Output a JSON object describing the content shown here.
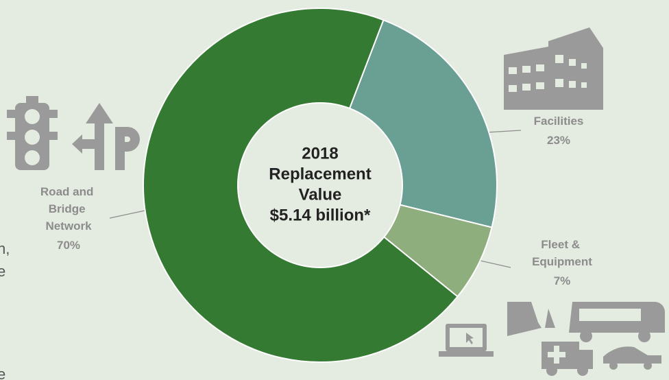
{
  "chart_data": {
    "type": "donut",
    "center_text": [
      "2018",
      "Replacement",
      "Value",
      "$5.14 billion*"
    ],
    "categories": [
      "Facilities",
      "Fleet & Equipment",
      "Road and Bridge Network"
    ],
    "values": [
      23,
      7,
      70
    ],
    "value_labels": [
      "23%",
      "7%",
      "70%"
    ],
    "colors": [
      "#6a9f94",
      "#8fae7d",
      "#347a32"
    ],
    "annotations": [
      "n,",
      "e",
      "e"
    ]
  }
}
